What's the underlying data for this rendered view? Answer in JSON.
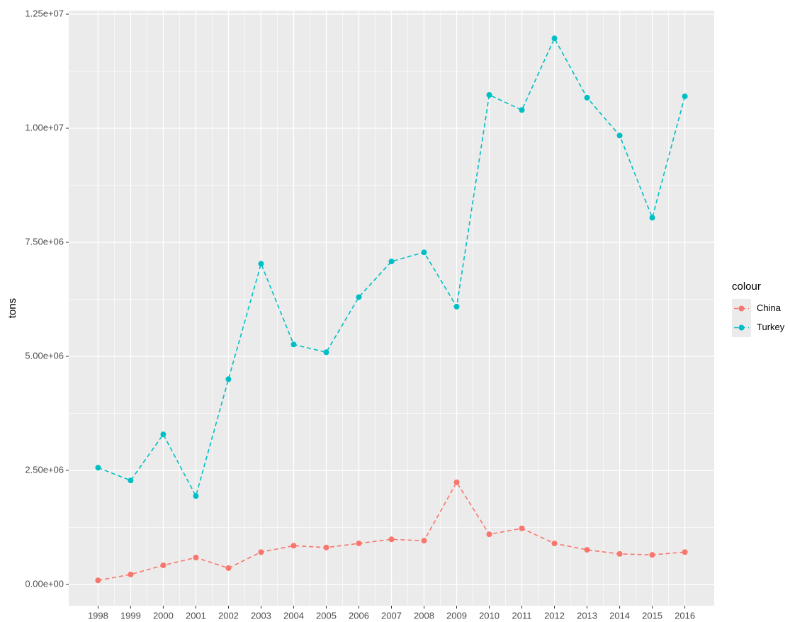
{
  "chart_data": {
    "type": "line",
    "y_label": "tons",
    "legend_title": "colour",
    "x": [
      1998,
      1999,
      2000,
      2001,
      2002,
      2003,
      2004,
      2005,
      2006,
      2007,
      2008,
      2009,
      2010,
      2011,
      2012,
      2013,
      2014,
      2015,
      2016
    ],
    "series": [
      {
        "name": "China",
        "color": "#F8766D",
        "values": [
          90000,
          220000,
          420000,
          590000,
          360000,
          710000,
          850000,
          810000,
          900000,
          990000,
          960000,
          2240000,
          1100000,
          1230000,
          900000,
          760000,
          670000,
          650000,
          710000
        ]
      },
      {
        "name": "Turkey",
        "color": "#00BFC4",
        "values": [
          2560000,
          2280000,
          3290000,
          1940000,
          4500000,
          7030000,
          5260000,
          5090000,
          6300000,
          7080000,
          7280000,
          6090000,
          10730000,
          10400000,
          11970000,
          10670000,
          9840000,
          8040000,
          10700000
        ]
      }
    ],
    "xlim": [
      1997.1,
      2016.9
    ],
    "xticks": [
      1998,
      1999,
      2000,
      2001,
      2002,
      2003,
      2004,
      2005,
      2006,
      2007,
      2008,
      2009,
      2010,
      2011,
      2012,
      2013,
      2014,
      2015,
      2016
    ],
    "ylim": [
      -465000,
      12578000
    ],
    "yticks": [
      {
        "value": 0,
        "label": "0.00e+00"
      },
      {
        "value": 2500000,
        "label": "2.50e+06"
      },
      {
        "value": 5000000,
        "label": "5.00e+06"
      },
      {
        "value": 7500000,
        "label": "7.50e+06"
      },
      {
        "value": 10000000,
        "label": "1.00e+07"
      },
      {
        "value": 12500000,
        "label": "1.25e+07"
      }
    ],
    "grid": true,
    "legend_position": "right"
  }
}
